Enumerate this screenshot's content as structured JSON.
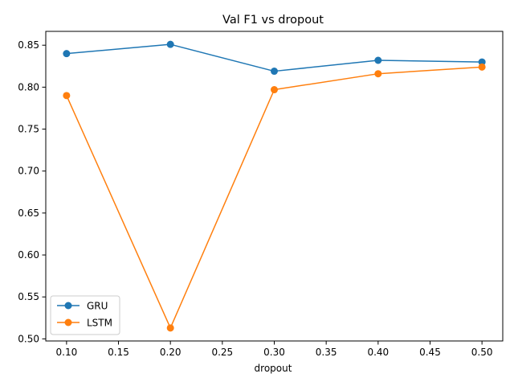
{
  "chart_data": {
    "type": "line",
    "title": "Val F1 vs dropout",
    "xlabel": "dropout",
    "ylabel": "",
    "x": [
      0.1,
      0.2,
      0.3,
      0.4,
      0.5
    ],
    "xlim": [
      0.08,
      0.52
    ],
    "ylim": [
      0.4975,
      0.8665
    ],
    "x_ticks": [
      "0.10",
      "0.15",
      "0.20",
      "0.25",
      "0.30",
      "0.35",
      "0.40",
      "0.45",
      "0.50"
    ],
    "y_ticks": [
      "0.50",
      "0.55",
      "0.60",
      "0.65",
      "0.70",
      "0.75",
      "0.80",
      "0.85"
    ],
    "grid": false,
    "legend_position": "lower-left",
    "series": [
      {
        "name": "GRU",
        "color": "#1f77b4",
        "marker": "circle",
        "values": [
          0.84,
          0.851,
          0.819,
          0.832,
          0.83
        ]
      },
      {
        "name": "LSTM",
        "color": "#ff7f0e",
        "marker": "circle",
        "values": [
          0.79,
          0.513,
          0.797,
          0.816,
          0.824
        ]
      }
    ]
  }
}
